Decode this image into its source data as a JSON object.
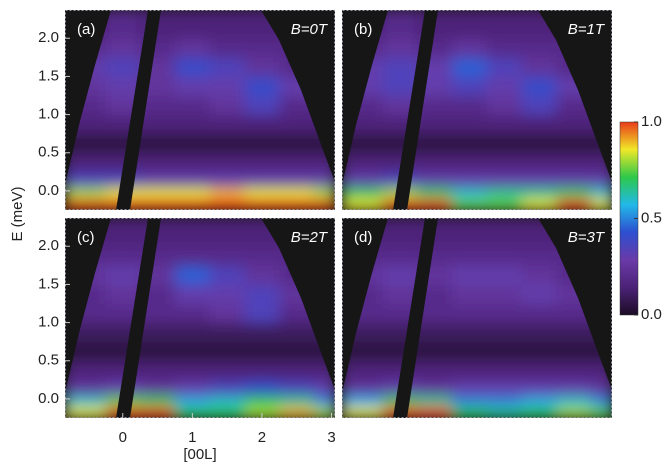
{
  "chart_data": [
    {
      "type": "heatmap",
      "panel_label": "(a)",
      "title": "B=0T",
      "ylabel": "E (meV)",
      "xlim": [
        -0.83,
        3.05
      ],
      "ylim": [
        -0.25,
        2.37
      ],
      "yticks": [
        {
          "value": 0,
          "label": "0.0"
        },
        {
          "value": 0.5,
          "label": "0.5"
        },
        {
          "value": 1,
          "label": "1.0"
        },
        {
          "value": 1.5,
          "label": "1.5"
        },
        {
          "value": 2,
          "label": "2.0"
        }
      ],
      "x_bins": [
        -0.83,
        -0.25,
        0.25,
        0.75,
        1.25,
        1.75,
        2.25,
        2.75,
        3.05
      ],
      "y_bins": [
        -0.25,
        -0.1,
        0.05,
        0.25,
        0.5,
        0.75,
        1.0,
        1.25,
        1.5,
        1.75,
        2.0,
        2.37
      ],
      "z": [
        [
          1,
          1,
          1,
          1,
          1,
          1,
          1,
          1
        ],
        [
          0.8,
          0.85,
          0.85,
          0.85,
          0.9,
          0.85,
          0.85,
          0.8
        ],
        [
          0.35,
          0.35,
          0.3,
          0.3,
          0.3,
          0.3,
          0.3,
          0.3
        ],
        [
          0.15,
          0.15,
          0.15,
          0.15,
          0.15,
          0.15,
          0.15,
          0.15
        ],
        [
          0.05,
          0.05,
          0.05,
          0.05,
          0.05,
          0.05,
          0.05,
          0.05
        ],
        [
          0.15,
          0.15,
          0.15,
          0.15,
          0.15,
          0.15,
          0.15,
          0.15
        ],
        [
          0.2,
          0.25,
          0.2,
          0.2,
          0.25,
          0.35,
          0.2,
          0.2
        ],
        [
          0.25,
          0.3,
          0.25,
          0.3,
          0.3,
          0.4,
          0.3,
          0.2
        ],
        [
          0.3,
          0.35,
          0.25,
          0.4,
          0.35,
          0.25,
          0.2,
          0.2
        ],
        [
          0.2,
          0.25,
          0.2,
          0.25,
          0.2,
          0.2,
          0.2,
          0.2
        ],
        [
          0.15,
          0.2,
          0.15,
          0.15,
          0.15,
          0.15,
          0.15,
          0.15
        ]
      ]
    },
    {
      "type": "heatmap",
      "panel_label": "(b)",
      "title": "B=1T",
      "xlim": [
        -0.83,
        3.05
      ],
      "ylim": [
        -0.25,
        2.37
      ],
      "x_bins": [
        -0.83,
        -0.25,
        0.25,
        0.75,
        1.25,
        1.75,
        2.25,
        2.75,
        3.05
      ],
      "y_bins": [
        -0.25,
        -0.1,
        0.05,
        0.25,
        0.5,
        0.75,
        1.0,
        1.25,
        1.5,
        1.75,
        2.0,
        2.37
      ],
      "z": [
        [
          0.85,
          1,
          1,
          0.75,
          0.75,
          0.85,
          1,
          0.85
        ],
        [
          0.7,
          0.8,
          0.7,
          0.6,
          0.65,
          0.65,
          0.7,
          0.6
        ],
        [
          0.3,
          0.35,
          0.3,
          0.3,
          0.3,
          0.3,
          0.3,
          0.3
        ],
        [
          0.15,
          0.15,
          0.15,
          0.15,
          0.15,
          0.15,
          0.15,
          0.15
        ],
        [
          0.05,
          0.05,
          0.05,
          0.05,
          0.05,
          0.05,
          0.05,
          0.05
        ],
        [
          0.15,
          0.15,
          0.15,
          0.15,
          0.15,
          0.15,
          0.15,
          0.15
        ],
        [
          0.2,
          0.25,
          0.2,
          0.2,
          0.25,
          0.35,
          0.2,
          0.2
        ],
        [
          0.3,
          0.35,
          0.3,
          0.35,
          0.3,
          0.4,
          0.3,
          0.2
        ],
        [
          0.3,
          0.35,
          0.3,
          0.45,
          0.35,
          0.25,
          0.2,
          0.2
        ],
        [
          0.2,
          0.25,
          0.2,
          0.25,
          0.2,
          0.2,
          0.2,
          0.2
        ],
        [
          0.15,
          0.2,
          0.15,
          0.15,
          0.15,
          0.15,
          0.15,
          0.15
        ]
      ],
      "zlim": [
        0,
        1
      ],
      "zticks": [
        {
          "value": 0,
          "label": "0.0"
        },
        {
          "value": 0.5,
          "label": "0.5"
        },
        {
          "value": 1,
          "label": "1.0"
        }
      ],
      "colormap": [
        "#1c0c24",
        "#4b2277",
        "#6a3aa8",
        "#2d4fd0",
        "#22b8e8",
        "#2ec84a",
        "#f0e828",
        "#e83a18"
      ]
    },
    {
      "type": "heatmap",
      "panel_label": "(c)",
      "title": "B=2T",
      "xlabel": "[00L]",
      "xlim": [
        -0.83,
        3.05
      ],
      "ylim": [
        -0.25,
        2.37
      ],
      "yticks": [
        {
          "value": 0,
          "label": "0.0"
        },
        {
          "value": 0.5,
          "label": "0.5"
        },
        {
          "value": 1,
          "label": "1.0"
        },
        {
          "value": 1.5,
          "label": "1.5"
        },
        {
          "value": 2,
          "label": "2.0"
        }
      ],
      "xticks": [
        0,
        1,
        2,
        3
      ],
      "x_bins": [
        -0.83,
        -0.25,
        0.25,
        0.75,
        1.25,
        1.75,
        2.25,
        2.75,
        3.05
      ],
      "y_bins": [
        -0.25,
        -0.1,
        0.05,
        0.25,
        0.5,
        0.75,
        1.0,
        1.25,
        1.5,
        1.75,
        2.0,
        2.37
      ],
      "z": [
        [
          0.85,
          1,
          1,
          0.7,
          0.7,
          0.8,
          0.9,
          0.8
        ],
        [
          0.6,
          0.75,
          0.7,
          0.55,
          0.6,
          0.7,
          0.65,
          0.5
        ],
        [
          0.25,
          0.3,
          0.25,
          0.3,
          0.35,
          0.4,
          0.35,
          0.3
        ],
        [
          0.15,
          0.15,
          0.15,
          0.15,
          0.15,
          0.15,
          0.15,
          0.15
        ],
        [
          0.05,
          0.05,
          0.05,
          0.05,
          0.05,
          0.05,
          0.05,
          0.05
        ],
        [
          0.1,
          0.1,
          0.1,
          0.1,
          0.1,
          0.1,
          0.1,
          0.1
        ],
        [
          0.2,
          0.2,
          0.2,
          0.2,
          0.25,
          0.35,
          0.2,
          0.2
        ],
        [
          0.2,
          0.25,
          0.2,
          0.3,
          0.3,
          0.35,
          0.25,
          0.2
        ],
        [
          0.25,
          0.3,
          0.25,
          0.45,
          0.35,
          0.25,
          0.2,
          0.2
        ],
        [
          0.2,
          0.2,
          0.2,
          0.2,
          0.2,
          0.2,
          0.2,
          0.2
        ],
        [
          0.15,
          0.15,
          0.15,
          0.15,
          0.15,
          0.15,
          0.15,
          0.15
        ]
      ]
    },
    {
      "type": "heatmap",
      "panel_label": "(d)",
      "title": "B=3T",
      "xlim": [
        -0.83,
        3.05
      ],
      "ylim": [
        -0.25,
        2.37
      ],
      "x_bins": [
        -0.83,
        -0.25,
        0.25,
        0.75,
        1.25,
        1.75,
        2.25,
        2.75,
        3.05
      ],
      "y_bins": [
        -0.25,
        -0.1,
        0.05,
        0.25,
        0.5,
        0.75,
        1.0,
        1.25,
        1.5,
        1.75,
        2.0,
        2.37
      ],
      "z": [
        [
          0.85,
          1,
          1,
          0.7,
          0.65,
          0.7,
          0.8,
          0.75
        ],
        [
          0.55,
          0.7,
          0.65,
          0.5,
          0.5,
          0.55,
          0.6,
          0.5
        ],
        [
          0.25,
          0.3,
          0.25,
          0.3,
          0.3,
          0.3,
          0.3,
          0.25
        ],
        [
          0.15,
          0.15,
          0.15,
          0.15,
          0.15,
          0.15,
          0.15,
          0.15
        ],
        [
          0.05,
          0.05,
          0.05,
          0.05,
          0.05,
          0.05,
          0.05,
          0.05
        ],
        [
          0.1,
          0.1,
          0.1,
          0.1,
          0.1,
          0.1,
          0.1,
          0.1
        ],
        [
          0.2,
          0.2,
          0.2,
          0.2,
          0.2,
          0.2,
          0.2,
          0.2
        ],
        [
          0.2,
          0.25,
          0.2,
          0.25,
          0.25,
          0.3,
          0.25,
          0.2
        ],
        [
          0.25,
          0.3,
          0.25,
          0.3,
          0.3,
          0.25,
          0.2,
          0.2
        ],
        [
          0.2,
          0.2,
          0.2,
          0.2,
          0.2,
          0.2,
          0.2,
          0.2
        ],
        [
          0.15,
          0.15,
          0.15,
          0.15,
          0.15,
          0.15,
          0.15,
          0.15
        ]
      ]
    }
  ]
}
